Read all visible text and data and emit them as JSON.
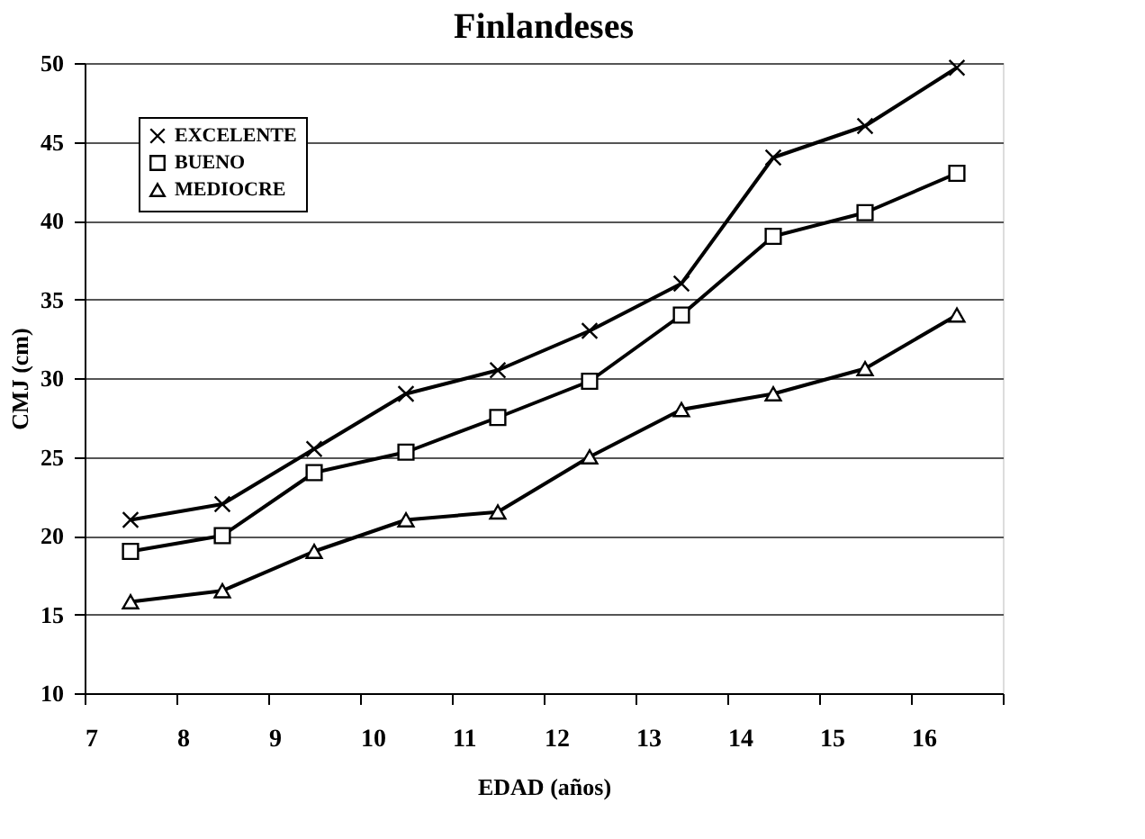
{
  "chart_data": {
    "type": "line",
    "title": "Finlandeses",
    "xlabel": "EDAD (años)",
    "ylabel": "CMJ (cm)",
    "categories": [
      "7",
      "8",
      "9",
      "10",
      "11",
      "12",
      "13",
      "14",
      "15",
      "16"
    ],
    "series": [
      {
        "name": "EXCELENTE",
        "color": "#000000",
        "marker": "cross",
        "values": [
          21,
          22,
          25.5,
          29,
          30.5,
          33,
          36,
          44,
          46,
          49.7
        ]
      },
      {
        "name": "BUENO",
        "color": "#000000",
        "marker": "square",
        "values": [
          19,
          20,
          24,
          25.3,
          27.5,
          29.8,
          34,
          39,
          40.5,
          43
        ]
      },
      {
        "name": "MEDIOCRE",
        "color": "#000000",
        "marker": "triangle",
        "values": [
          15.8,
          16.5,
          19,
          21,
          21.5,
          25,
          28,
          29,
          30.6,
          34
        ]
      }
    ],
    "ylim": [
      10,
      50
    ],
    "yticks": [
      10,
      15,
      20,
      25,
      30,
      35,
      40,
      45,
      50
    ],
    "grid": "y",
    "legend": "top left",
    "line_style": "solid"
  }
}
